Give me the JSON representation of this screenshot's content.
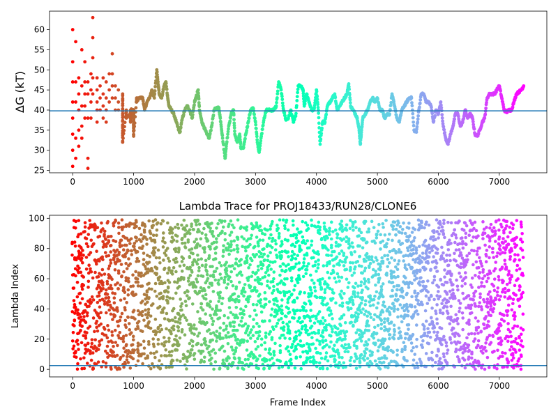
{
  "chart_data": [
    {
      "type": "scatter",
      "title": "",
      "xlabel": "",
      "ylabel": "ΔG (kT)",
      "xlim": [
        -380,
        7780
      ],
      "ylim": [
        24.4,
        64.6
      ],
      "xticks": [
        0,
        1000,
        2000,
        3000,
        4000,
        5000,
        6000,
        7000
      ],
      "yticks": [
        25,
        30,
        35,
        40,
        45,
        50,
        55,
        60
      ],
      "hline": 39.8,
      "hline_color": "#1f77b4",
      "colormap": "rainbow (reversed with frame index: red at start, violet at end)",
      "trace_points": [
        [
          0,
          60
        ],
        [
          0,
          52
        ],
        [
          0,
          47
        ],
        [
          0,
          42
        ],
        [
          0,
          38
        ],
        [
          0,
          34
        ],
        [
          0,
          30
        ],
        [
          0,
          26
        ],
        [
          50,
          57
        ],
        [
          50,
          47
        ],
        [
          50,
          42
        ],
        [
          50,
          33
        ],
        [
          50,
          28
        ],
        [
          100,
          48
        ],
        [
          100,
          44
        ],
        [
          100,
          40
        ],
        [
          100,
          35
        ],
        [
          100,
          31
        ],
        [
          150,
          55
        ],
        [
          150,
          46
        ],
        [
          150,
          41
        ],
        [
          150,
          36
        ],
        [
          150,
          33
        ],
        [
          200,
          52
        ],
        [
          200,
          47
        ],
        [
          200,
          44
        ],
        [
          200,
          41
        ],
        [
          200,
          38
        ],
        [
          250,
          47
        ],
        [
          250,
          44
        ],
        [
          250,
          38
        ],
        [
          250,
          28
        ],
        [
          250,
          25.5
        ],
        [
          300,
          49
        ],
        [
          300,
          45
        ],
        [
          300,
          42
        ],
        [
          300,
          38
        ],
        [
          330,
          63
        ],
        [
          330,
          58
        ],
        [
          330,
          53
        ],
        [
          330,
          48
        ],
        [
          330,
          44
        ],
        [
          400,
          48
        ],
        [
          400,
          45
        ],
        [
          400,
          42
        ],
        [
          400,
          40
        ],
        [
          400,
          37
        ],
        [
          450,
          46
        ],
        [
          450,
          43
        ],
        [
          450,
          40
        ],
        [
          500,
          48
        ],
        [
          500,
          44
        ],
        [
          500,
          41
        ],
        [
          500,
          38
        ],
        [
          550,
          47
        ],
        [
          550,
          43
        ],
        [
          550,
          40
        ],
        [
          550,
          37
        ],
        [
          600,
          49
        ],
        [
          600,
          45
        ],
        [
          600,
          42
        ],
        [
          650,
          54
        ],
        [
          650,
          49
        ],
        [
          650,
          46
        ],
        [
          650,
          43
        ],
        [
          700,
          46
        ],
        [
          700,
          43
        ],
        [
          700,
          40
        ],
        [
          750,
          45
        ],
        [
          750,
          42
        ],
        [
          750,
          40
        ],
        [
          820,
          44
        ],
        [
          820,
          40
        ],
        [
          820,
          36
        ],
        [
          820,
          32
        ],
        [
          880,
          40
        ],
        [
          880,
          38
        ],
        [
          950,
          39
        ],
        [
          950,
          37
        ],
        [
          950,
          40
        ],
        [
          1000,
          40
        ],
        [
          1000,
          38
        ],
        [
          1000,
          36
        ],
        [
          1000,
          33.5
        ],
        [
          1050,
          43
        ],
        [
          1050,
          42
        ],
        [
          1080,
          43
        ],
        [
          1150,
          43
        ],
        [
          1180,
          40
        ],
        [
          1220,
          42
        ],
        [
          1260,
          43
        ],
        [
          1300,
          45
        ],
        [
          1340,
          43
        ],
        [
          1380,
          50
        ],
        [
          1400,
          47
        ],
        [
          1420,
          44
        ],
        [
          1460,
          43
        ],
        [
          1500,
          46
        ],
        [
          1530,
          47
        ],
        [
          1560,
          43
        ],
        [
          1580,
          41
        ],
        [
          1620,
          40
        ],
        [
          1660,
          39
        ],
        [
          1700,
          37
        ],
        [
          1740,
          35
        ],
        [
          1760,
          34.5
        ],
        [
          1800,
          38
        ],
        [
          1840,
          40
        ],
        [
          1880,
          41
        ],
        [
          1920,
          40
        ],
        [
          1960,
          38
        ],
        [
          2000,
          42
        ],
        [
          2020,
          43
        ],
        [
          2060,
          45
        ],
        [
          2080,
          40
        ],
        [
          2120,
          37
        ],
        [
          2150,
          36
        ],
        [
          2200,
          34
        ],
        [
          2240,
          33
        ],
        [
          2280,
          36
        ],
        [
          2320,
          40
        ],
        [
          2360,
          40.5
        ],
        [
          2400,
          40.5
        ],
        [
          2430,
          37
        ],
        [
          2460,
          33
        ],
        [
          2500,
          28
        ],
        [
          2520,
          31
        ],
        [
          2560,
          36
        ],
        [
          2600,
          39
        ],
        [
          2640,
          40
        ],
        [
          2660,
          34
        ],
        [
          2700,
          32
        ],
        [
          2740,
          34
        ],
        [
          2760,
          30.5
        ],
        [
          2800,
          30.5
        ],
        [
          2840,
          34
        ],
        [
          2880,
          37
        ],
        [
          2920,
          40
        ],
        [
          2960,
          40.5
        ],
        [
          3000,
          37
        ],
        [
          3030,
          32
        ],
        [
          3060,
          29.5
        ],
        [
          3100,
          34
        ],
        [
          3140,
          38
        ],
        [
          3180,
          40
        ],
        [
          3220,
          40
        ],
        [
          3260,
          40
        ],
        [
          3300,
          40
        ],
        [
          3340,
          41
        ],
        [
          3380,
          47
        ],
        [
          3420,
          45
        ],
        [
          3460,
          40
        ],
        [
          3500,
          37.5
        ],
        [
          3540,
          38
        ],
        [
          3580,
          40
        ],
        [
          3620,
          37
        ],
        [
          3660,
          38.5
        ],
        [
          3700,
          46
        ],
        [
          3740,
          46
        ],
        [
          3780,
          45
        ],
        [
          3800,
          41
        ],
        [
          3840,
          44
        ],
        [
          3880,
          42
        ],
        [
          3920,
          40
        ],
        [
          3960,
          40
        ],
        [
          4000,
          45
        ],
        [
          4030,
          40
        ],
        [
          4060,
          31.5
        ],
        [
          4100,
          37
        ],
        [
          4140,
          37
        ],
        [
          4180,
          41
        ],
        [
          4220,
          42
        ],
        [
          4260,
          43
        ],
        [
          4300,
          44
        ],
        [
          4340,
          40
        ],
        [
          4380,
          41
        ],
        [
          4420,
          42
        ],
        [
          4460,
          43
        ],
        [
          4500,
          44
        ],
        [
          4530,
          46.5
        ],
        [
          4560,
          41
        ],
        [
          4600,
          40
        ],
        [
          4640,
          39
        ],
        [
          4670,
          38
        ],
        [
          4700,
          35
        ],
        [
          4720,
          31.5
        ],
        [
          4740,
          35
        ],
        [
          4760,
          38
        ],
        [
          4800,
          39
        ],
        [
          4840,
          40
        ],
        [
          4880,
          42
        ],
        [
          4920,
          43
        ],
        [
          4960,
          42
        ],
        [
          5000,
          43
        ],
        [
          5040,
          40
        ],
        [
          5080,
          40
        ],
        [
          5120,
          38
        ],
        [
          5160,
          39
        ],
        [
          5200,
          39
        ],
        [
          5240,
          44
        ],
        [
          5280,
          41
        ],
        [
          5320,
          38
        ],
        [
          5360,
          37
        ],
        [
          5400,
          40
        ],
        [
          5440,
          41
        ],
        [
          5480,
          42
        ],
        [
          5520,
          43
        ],
        [
          5560,
          43
        ],
        [
          5600,
          35
        ],
        [
          5640,
          34.5
        ],
        [
          5680,
          40
        ],
        [
          5720,
          44
        ],
        [
          5760,
          44
        ],
        [
          5800,
          42
        ],
        [
          5840,
          42
        ],
        [
          5880,
          41
        ],
        [
          5920,
          37
        ],
        [
          5960,
          40
        ],
        [
          6000,
          39
        ],
        [
          6040,
          42
        ],
        [
          6080,
          36
        ],
        [
          6120,
          33
        ],
        [
          6160,
          31.5
        ],
        [
          6200,
          34
        ],
        [
          6240,
          36
        ],
        [
          6280,
          39
        ],
        [
          6320,
          39
        ],
        [
          6360,
          36
        ],
        [
          6400,
          37
        ],
        [
          6440,
          40
        ],
        [
          6480,
          38
        ],
        [
          6520,
          39
        ],
        [
          6560,
          38
        ],
        [
          6600,
          34
        ],
        [
          6640,
          33.5
        ],
        [
          6680,
          35
        ],
        [
          6720,
          37
        ],
        [
          6760,
          38
        ],
        [
          6800,
          43
        ],
        [
          6840,
          44
        ],
        [
          6880,
          44
        ],
        [
          6920,
          44
        ],
        [
          6960,
          45
        ],
        [
          7000,
          46
        ],
        [
          7040,
          43
        ],
        [
          7080,
          40
        ],
        [
          7120,
          39.5
        ],
        [
          7160,
          40
        ],
        [
          7200,
          40
        ],
        [
          7240,
          42
        ],
        [
          7280,
          44
        ],
        [
          7320,
          44.5
        ],
        [
          7360,
          45
        ],
        [
          7400,
          46
        ]
      ]
    },
    {
      "type": "scatter",
      "title": "Lambda Trace for PROJ18433/RUN28/CLONE6",
      "xlabel": "Frame Index",
      "ylabel": "Lambda Index",
      "xlim": [
        -380,
        7780
      ],
      "ylim": [
        -5,
        102
      ],
      "xticks": [
        0,
        1000,
        2000,
        3000,
        4000,
        5000,
        6000,
        7000
      ],
      "yticks": [
        0,
        20,
        40,
        60,
        80,
        100
      ],
      "hline": 2.5,
      "hline_color": "#1f77b4",
      "colormap": "rainbow (reversed with frame index: red at start, violet at end)",
      "x_range": [
        0,
        7400
      ],
      "y_range": [
        0,
        99
      ]
    }
  ]
}
